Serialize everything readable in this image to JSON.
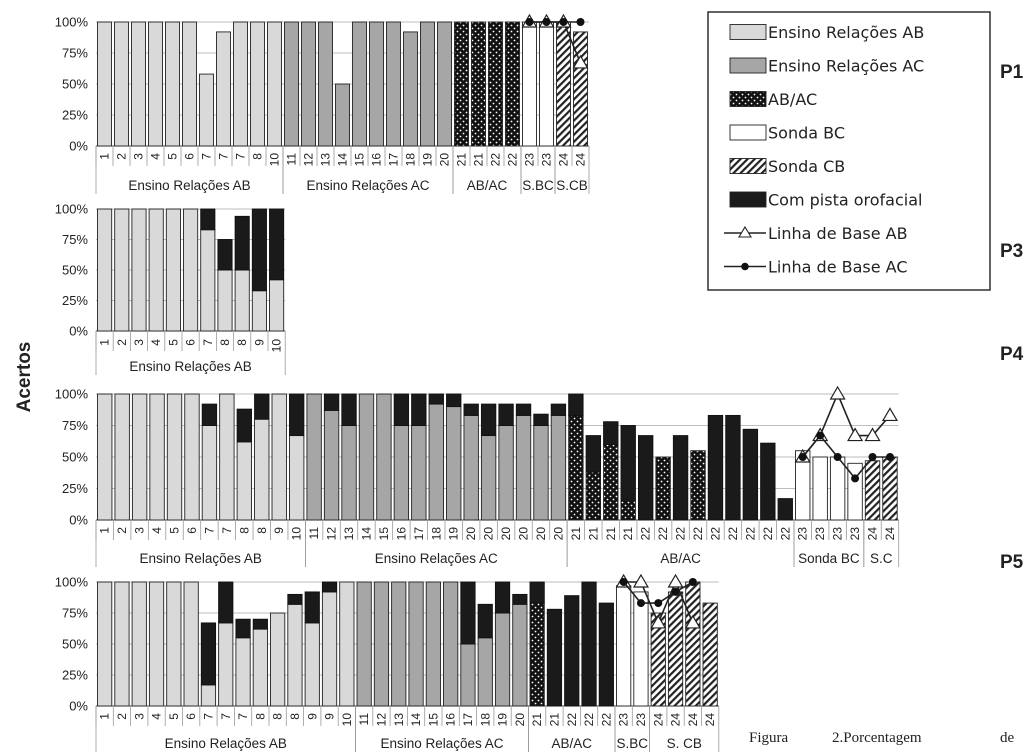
{
  "y_axis_title": "Acertos",
  "caption": [
    "Figura",
    "2.Porcentagem",
    "de"
  ],
  "colors": {
    "ab": "#d9d9d9",
    "ac": "#a6a6a6",
    "abac": "#111111",
    "bc": "#ffffff",
    "cb": "#ffffff",
    "cue": "#1a1a1a",
    "line": "#222222"
  },
  "legend": [
    {
      "key": "ab",
      "label": "Ensino Relações AB",
      "kind": "ab"
    },
    {
      "key": "ac",
      "label": "Ensino Relações AC",
      "kind": "ac"
    },
    {
      "key": "abac",
      "label": "AB/AC",
      "kind": "abac"
    },
    {
      "key": "bc",
      "label": "Sonda BC",
      "kind": "bc"
    },
    {
      "key": "cb",
      "label": "Sonda CB",
      "kind": "cb"
    },
    {
      "key": "cue",
      "label": "Com pista orofacial",
      "kind": "cue"
    },
    {
      "key": "lbab",
      "label": "Linha de Base AB",
      "kind": "line_tri"
    },
    {
      "key": "lbac",
      "label": "Linha de Base AC",
      "kind": "line_dot"
    }
  ],
  "chart_data": [
    {
      "participant": "P1",
      "type": "bar",
      "yticks": [
        "100%",
        "75%",
        "50%",
        "25%",
        "0%"
      ],
      "ylim": [
        0,
        100
      ],
      "sessions": [
        "1",
        "2",
        "3",
        "4",
        "5",
        "6",
        "7",
        "7",
        "7",
        "8",
        "10",
        "11",
        "12",
        "13",
        "14",
        "15",
        "16",
        "17",
        "18",
        "19",
        "20",
        "21",
        "21",
        "22",
        "22",
        "23",
        "23",
        "24",
        "24"
      ],
      "condition": [
        "ab",
        "ab",
        "ab",
        "ab",
        "ab",
        "ab",
        "ab",
        "ab",
        "ab",
        "ab",
        "ab",
        "ac",
        "ac",
        "ac",
        "ac",
        "ac",
        "ac",
        "ac",
        "ac",
        "ac",
        "ac",
        "abac",
        "abac",
        "abac",
        "abac",
        "bc",
        "bc",
        "cb",
        "cb"
      ],
      "values": [
        100,
        100,
        100,
        100,
        100,
        100,
        58,
        92,
        100,
        100,
        100,
        100,
        100,
        100,
        50,
        100,
        100,
        100,
        92,
        100,
        100,
        100,
        100,
        100,
        100,
        100,
        100,
        100,
        92
      ],
      "cue": [
        0,
        0,
        0,
        0,
        0,
        0,
        0,
        0,
        0,
        0,
        0,
        0,
        0,
        0,
        0,
        0,
        0,
        0,
        0,
        0,
        0,
        0,
        0,
        0,
        0,
        0,
        0,
        0,
        0
      ],
      "groups": [
        {
          "label": "Ensino Relações AB",
          "from": 0,
          "to": 10
        },
        {
          "label": "Ensino Relações AC",
          "from": 11,
          "to": 20
        },
        {
          "label": "AB/AC",
          "from": 21,
          "to": 24
        },
        {
          "label": "S.BC",
          "from": 25,
          "to": 26
        },
        {
          "label": "S.CB",
          "from": 27,
          "to": 28
        }
      ],
      "baseline_ab": [
        {
          "i": 25,
          "v": 100
        },
        {
          "i": 26,
          "v": 100
        },
        {
          "i": 27,
          "v": 100
        },
        {
          "i": 28,
          "v": 67
        }
      ],
      "baseline_ac": [
        {
          "i": 25,
          "v": 100
        },
        {
          "i": 26,
          "v": 100
        },
        {
          "i": 27,
          "v": 100
        },
        {
          "i": 28,
          "v": 100
        }
      ]
    },
    {
      "participant": "P3",
      "type": "bar",
      "yticks": [
        "100%",
        "75%",
        "50%",
        "25%",
        "0%"
      ],
      "ylim": [
        0,
        100
      ],
      "sessions": [
        "1",
        "2",
        "3",
        "4",
        "5",
        "6",
        "7",
        "8",
        "8",
        "9",
        "10"
      ],
      "condition": [
        "ab",
        "ab",
        "ab",
        "ab",
        "ab",
        "ab",
        "ab",
        "ab",
        "ab",
        "ab",
        "ab"
      ],
      "values": [
        100,
        100,
        100,
        100,
        100,
        100,
        83,
        50,
        50,
        33,
        42
      ],
      "cue": [
        0,
        0,
        0,
        0,
        0,
        0,
        17,
        25,
        44,
        67,
        58
      ],
      "groups": [
        {
          "label": "Ensino Relações AB",
          "from": 0,
          "to": 10
        }
      ],
      "baseline_ab": [],
      "baseline_ac": []
    },
    {
      "participant": "P4",
      "type": "bar",
      "yticks": [
        "100%",
        "75%",
        "50%",
        "25%",
        "0%"
      ],
      "ylim": [
        0,
        100
      ],
      "sessions": [
        "1",
        "2",
        "3",
        "4",
        "5",
        "6",
        "7",
        "7",
        "8",
        "8",
        "9",
        "10",
        "11",
        "12",
        "13",
        "14",
        "15",
        "16",
        "17",
        "18",
        "19",
        "20",
        "20",
        "20",
        "20",
        "20",
        "20",
        "21",
        "21",
        "21",
        "21",
        "22",
        "22",
        "22",
        "22",
        "22",
        "22",
        "22",
        "22",
        "22",
        "23",
        "23",
        "23",
        "23",
        "24",
        "24"
      ],
      "condition": [
        "ab",
        "ab",
        "ab",
        "ab",
        "ab",
        "ab",
        "ab",
        "ab",
        "ab",
        "ab",
        "ab",
        "ab",
        "ac",
        "ac",
        "ac",
        "ac",
        "ac",
        "ac",
        "ac",
        "ac",
        "ac",
        "ac",
        "ac",
        "ac",
        "ac",
        "ac",
        "ac",
        "abac",
        "abac",
        "abac",
        "abac",
        "abac",
        "abac",
        "abac",
        "abac",
        "abac",
        "abac",
        "abac",
        "abac",
        "abac",
        "bc",
        "bc",
        "bc",
        "bc",
        "cb",
        "cb"
      ],
      "values": [
        100,
        100,
        100,
        100,
        100,
        100,
        75,
        100,
        62,
        80,
        100,
        67,
        100,
        87,
        75,
        100,
        100,
        75,
        75,
        92,
        90,
        83,
        67,
        75,
        83,
        75,
        83,
        83,
        38,
        60,
        15,
        0,
        50,
        0,
        55,
        0,
        0,
        0,
        0,
        0,
        55,
        50,
        50,
        45,
        47,
        50
      ],
      "cue": [
        0,
        0,
        0,
        0,
        0,
        0,
        17,
        0,
        26,
        20,
        0,
        33,
        0,
        13,
        25,
        0,
        0,
        25,
        25,
        8,
        10,
        9,
        25,
        17,
        9,
        9,
        9,
        17,
        29,
        18,
        60,
        67,
        0,
        67,
        0,
        83,
        83,
        72,
        61,
        17,
        0,
        0,
        0,
        0,
        0,
        0
      ],
      "groups": [
        {
          "label": "Ensino Relações AB",
          "from": 0,
          "to": 11
        },
        {
          "label": "Ensino Relações AC",
          "from": 12,
          "to": 26
        },
        {
          "label": "AB/AC",
          "from": 27,
          "to": 39
        },
        {
          "label": "Sonda BC",
          "from": 40,
          "to": 43
        },
        {
          "label": "S.C",
          "from": 44,
          "to": 45
        }
      ],
      "baseline_ab": [
        {
          "i": 40,
          "v": 50
        },
        {
          "i": 41,
          "v": 67
        },
        {
          "i": 42,
          "v": 100
        },
        {
          "i": 43,
          "v": 67
        },
        {
          "i": 44,
          "v": 67
        },
        {
          "i": 45,
          "v": 83
        }
      ],
      "baseline_ac": [
        {
          "i": 40,
          "v": 50
        },
        {
          "i": 41,
          "v": 67
        },
        {
          "i": 42,
          "v": 50
        },
        {
          "i": 43,
          "v": 33
        },
        {
          "i": 44,
          "v": 50
        },
        {
          "i": 45,
          "v": 50
        }
      ]
    },
    {
      "participant": "P5",
      "type": "bar",
      "yticks": [
        "100%",
        "75%",
        "50%",
        "25%",
        "0%"
      ],
      "ylim": [
        0,
        100
      ],
      "sessions": [
        "1",
        "2",
        "3",
        "4",
        "5",
        "6",
        "7",
        "7",
        "7",
        "8",
        "8",
        "8",
        "9",
        "9",
        "10",
        "11",
        "12",
        "13",
        "14",
        "15",
        "16",
        "17",
        "18",
        "19",
        "20",
        "21",
        "21",
        "22",
        "22",
        "22",
        "23",
        "23",
        "24",
        "24",
        "24",
        "24"
      ],
      "condition": [
        "ab",
        "ab",
        "ab",
        "ab",
        "ab",
        "ab",
        "ab",
        "ab",
        "ab",
        "ab",
        "ab",
        "ab",
        "ab",
        "ab",
        "ab",
        "ac",
        "ac",
        "ac",
        "ac",
        "ac",
        "ac",
        "ac",
        "ac",
        "ac",
        "ac",
        "abac",
        "abac",
        "abac",
        "abac",
        "abac",
        "bc",
        "bc",
        "cb",
        "cb",
        "cb",
        "cb"
      ],
      "values": [
        100,
        100,
        100,
        100,
        100,
        100,
        17,
        67,
        55,
        62,
        75,
        82,
        67,
        92,
        100,
        100,
        100,
        100,
        100,
        100,
        100,
        50,
        55,
        75,
        82,
        83,
        0,
        0,
        0,
        0,
        97,
        92,
        75,
        92,
        100,
        83
      ],
      "cue": [
        0,
        0,
        0,
        0,
        0,
        0,
        50,
        33,
        15,
        8,
        0,
        8,
        25,
        8,
        0,
        0,
        0,
        0,
        0,
        0,
        0,
        50,
        27,
        25,
        8,
        17,
        78,
        89,
        100,
        83,
        0,
        0,
        0,
        0,
        0,
        0
      ],
      "groups": [
        {
          "label": "Ensino Relações AB",
          "from": 0,
          "to": 14
        },
        {
          "label": "Ensino Relações AC",
          "from": 15,
          "to": 24
        },
        {
          "label": "AB/AC",
          "from": 25,
          "to": 29
        },
        {
          "label": "S.BC",
          "from": 30,
          "to": 31
        },
        {
          "label": "S. CB",
          "from": 32,
          "to": 35
        }
      ],
      "baseline_ab": [
        {
          "i": 30,
          "v": 100
        },
        {
          "i": 31,
          "v": 100
        },
        {
          "i": 32,
          "v": 67
        },
        {
          "i": 33,
          "v": 100
        },
        {
          "i": 34,
          "v": 67
        }
      ],
      "baseline_ac": [
        {
          "i": 30,
          "v": 100
        },
        {
          "i": 31,
          "v": 83
        },
        {
          "i": 32,
          "v": 83
        },
        {
          "i": 33,
          "v": 92
        },
        {
          "i": 34,
          "v": 100
        }
      ]
    }
  ]
}
